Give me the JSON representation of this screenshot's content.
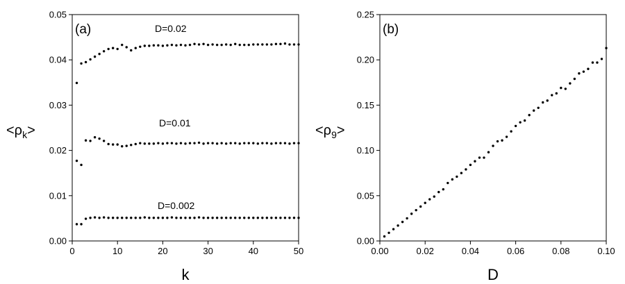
{
  "chart_data": [
    {
      "type": "scatter",
      "panel_label": "(a)",
      "xlabel": "k",
      "ylabel": "<ρk>",
      "ylabel_main": "<ρ",
      "ylabel_sub": "k",
      "ylabel_close": ">",
      "xlim": [
        0,
        50
      ],
      "ylim": [
        0,
        0.05
      ],
      "xticks": [
        0,
        10,
        20,
        30,
        40,
        50
      ],
      "xtick_labels": [
        "0",
        "10",
        "20",
        "30",
        "40",
        "50"
      ],
      "yticks": [
        0,
        0.01,
        0.02,
        0.03,
        0.04,
        0.05
      ],
      "ytick_labels": [
        "0.00",
        "0.01",
        "0.02",
        "0.03",
        "0.04",
        "0.05"
      ],
      "grid": false,
      "series": [
        {
          "name": "D=0.02",
          "x": [
            1,
            2,
            3,
            4,
            5,
            6,
            7,
            8,
            9,
            10,
            11,
            12,
            13,
            14,
            15,
            16,
            17,
            18,
            19,
            20,
            21,
            22,
            23,
            24,
            25,
            26,
            27,
            28,
            29,
            30,
            31,
            32,
            33,
            34,
            35,
            36,
            37,
            38,
            39,
            40,
            41,
            42,
            43,
            44,
            45,
            46,
            47,
            48,
            49,
            50
          ],
          "values": [
            0.0349,
            0.0392,
            0.0395,
            0.0401,
            0.0407,
            0.0413,
            0.0419,
            0.0424,
            0.0426,
            0.0424,
            0.0433,
            0.0428,
            0.0421,
            0.0426,
            0.0429,
            0.0431,
            0.0431,
            0.0432,
            0.0432,
            0.0431,
            0.0432,
            0.0433,
            0.0432,
            0.0433,
            0.0432,
            0.0433,
            0.0435,
            0.0434,
            0.0435,
            0.0433,
            0.0434,
            0.0433,
            0.0433,
            0.0434,
            0.0433,
            0.0435,
            0.0433,
            0.0433,
            0.0433,
            0.0434,
            0.0434,
            0.0434,
            0.0434,
            0.0434,
            0.0435,
            0.0435,
            0.0436,
            0.0434,
            0.0434,
            0.0434
          ]
        },
        {
          "name": "D=0.01",
          "x": [
            1,
            2,
            3,
            4,
            5,
            6,
            7,
            8,
            9,
            10,
            11,
            12,
            13,
            14,
            15,
            16,
            17,
            18,
            19,
            20,
            21,
            22,
            23,
            24,
            25,
            26,
            27,
            28,
            29,
            30,
            31,
            32,
            33,
            34,
            35,
            36,
            37,
            38,
            39,
            40,
            41,
            42,
            43,
            44,
            45,
            46,
            47,
            48,
            49,
            50
          ],
          "values": [
            0.0177,
            0.0168,
            0.0222,
            0.0221,
            0.0229,
            0.0226,
            0.0221,
            0.0214,
            0.0213,
            0.0213,
            0.0209,
            0.021,
            0.0212,
            0.0214,
            0.0216,
            0.0215,
            0.0215,
            0.0215,
            0.0216,
            0.0215,
            0.0216,
            0.0216,
            0.0215,
            0.0216,
            0.0215,
            0.0216,
            0.0216,
            0.0217,
            0.0215,
            0.0216,
            0.0216,
            0.0215,
            0.0216,
            0.0215,
            0.0216,
            0.0216,
            0.0215,
            0.0216,
            0.0216,
            0.0216,
            0.0215,
            0.0216,
            0.0216,
            0.0215,
            0.0216,
            0.0216,
            0.0216,
            0.0215,
            0.0216,
            0.0216
          ]
        },
        {
          "name": "D=0.002",
          "x": [
            1,
            2,
            3,
            4,
            5,
            6,
            7,
            8,
            9,
            10,
            11,
            12,
            13,
            14,
            15,
            16,
            17,
            18,
            19,
            20,
            21,
            22,
            23,
            24,
            25,
            26,
            27,
            28,
            29,
            30,
            31,
            32,
            33,
            34,
            35,
            36,
            37,
            38,
            39,
            40,
            41,
            42,
            43,
            44,
            45,
            46,
            47,
            48,
            49,
            50
          ],
          "values": [
            0.0037,
            0.0037,
            0.0049,
            0.0051,
            0.0052,
            0.0051,
            0.0052,
            0.0051,
            0.0051,
            0.0051,
            0.0051,
            0.0051,
            0.0051,
            0.0051,
            0.0051,
            0.0052,
            0.0051,
            0.0051,
            0.0051,
            0.0051,
            0.0051,
            0.0052,
            0.0051,
            0.0051,
            0.0051,
            0.0051,
            0.0051,
            0.0052,
            0.0051,
            0.0051,
            0.0051,
            0.0051,
            0.0051,
            0.0051,
            0.0051,
            0.0051,
            0.0051,
            0.0051,
            0.0051,
            0.0051,
            0.0051,
            0.0051,
            0.0051,
            0.0051,
            0.0051,
            0.0051,
            0.0051,
            0.0051,
            0.0051,
            0.0051
          ]
        }
      ]
    },
    {
      "type": "scatter",
      "panel_label": "(b)",
      "xlabel": "D",
      "ylabel": "<ρ9>",
      "ylabel_main": "<ρ",
      "ylabel_sub": "9",
      "ylabel_close": ">",
      "xlim": [
        0,
        0.1
      ],
      "ylim": [
        0,
        0.25
      ],
      "xticks": [
        0,
        0.02,
        0.04,
        0.06,
        0.08,
        0.1
      ],
      "xtick_labels": [
        "0.00",
        "0.02",
        "0.04",
        "0.06",
        "0.08",
        "0.10"
      ],
      "yticks": [
        0,
        0.05,
        0.1,
        0.15,
        0.2,
        0.25
      ],
      "ytick_labels": [
        "0.00",
        "0.05",
        "0.10",
        "0.15",
        "0.20",
        "0.25"
      ],
      "grid": false,
      "series": [
        {
          "x": [
            0.002,
            0.004,
            0.006,
            0.008,
            0.01,
            0.012,
            0.014,
            0.016,
            0.018,
            0.02,
            0.022,
            0.024,
            0.026,
            0.028,
            0.03,
            0.032,
            0.034,
            0.036,
            0.038,
            0.04,
            0.042,
            0.044,
            0.046,
            0.048,
            0.05,
            0.052,
            0.054,
            0.056,
            0.058,
            0.06,
            0.062,
            0.064,
            0.066,
            0.068,
            0.07,
            0.072,
            0.074,
            0.076,
            0.078,
            0.08,
            0.082,
            0.084,
            0.086,
            0.088,
            0.09,
            0.092,
            0.094,
            0.096,
            0.098,
            0.1
          ],
          "values": [
            0.005,
            0.009,
            0.013,
            0.017,
            0.021,
            0.025,
            0.03,
            0.034,
            0.038,
            0.042,
            0.046,
            0.049,
            0.054,
            0.057,
            0.064,
            0.068,
            0.071,
            0.075,
            0.079,
            0.084,
            0.088,
            0.092,
            0.092,
            0.098,
            0.105,
            0.11,
            0.111,
            0.115,
            0.121,
            0.127,
            0.131,
            0.133,
            0.139,
            0.144,
            0.147,
            0.153,
            0.155,
            0.161,
            0.163,
            0.169,
            0.168,
            0.174,
            0.179,
            0.185,
            0.187,
            0.19,
            0.197,
            0.197,
            0.201,
            0.213
          ]
        }
      ]
    }
  ]
}
